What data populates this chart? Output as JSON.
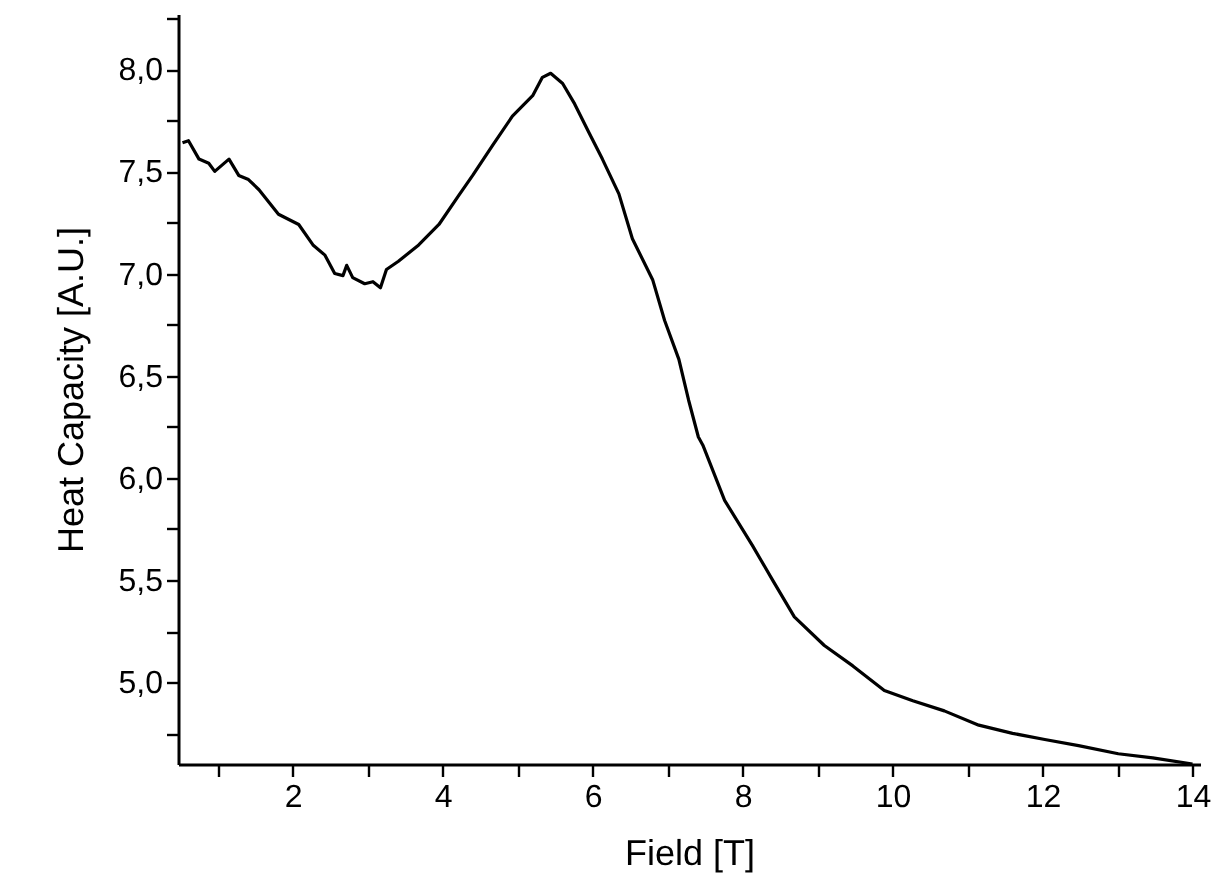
{
  "chart_data": {
    "type": "line",
    "xlabel": "Field [T]",
    "ylabel": "Heat Capacity [A.U.]",
    "xlim": [
      0.47,
      14.1
    ],
    "ylim": [
      4.6,
      8.27
    ],
    "xticks": [
      {
        "value": 1,
        "label": null
      },
      2,
      {
        "value": 3,
        "label": null
      },
      4,
      {
        "value": 5,
        "label": null
      },
      6,
      {
        "value": 7,
        "label": null
      },
      8,
      {
        "value": 9,
        "label": null
      },
      10,
      {
        "value": 11,
        "label": null
      },
      12,
      {
        "value": 13,
        "label": null
      },
      14
    ],
    "yticks": [
      {
        "value": 4.75,
        "label": null
      },
      {
        "value": 5.0,
        "label": "5,0"
      },
      {
        "value": 5.25,
        "label": null
      },
      {
        "value": 5.5,
        "label": "5,5"
      },
      {
        "value": 5.75,
        "label": null
      },
      {
        "value": 6.0,
        "label": "6,0"
      },
      {
        "value": 6.25,
        "label": null
      },
      {
        "value": 6.5,
        "label": "6,5"
      },
      {
        "value": 6.75,
        "label": null
      },
      {
        "value": 7.0,
        "label": "7,0"
      },
      {
        "value": 7.25,
        "label": null
      },
      {
        "value": 7.5,
        "label": "7,5"
      },
      {
        "value": 7.75,
        "label": null
      },
      {
        "value": 8.0,
        "label": "8,0"
      },
      {
        "value": 8.25,
        "label": null
      }
    ],
    "grid": false,
    "marker": "none",
    "line_style": "solid",
    "series": [
      {
        "color": "#000000",
        "x": [
          0.53,
          0.61,
          0.75,
          0.88,
          0.96,
          1.15,
          1.28,
          1.41,
          1.55,
          1.81,
          2.08,
          2.27,
          2.43,
          2.56,
          2.67,
          2.72,
          2.8,
          2.96,
          3.07,
          3.17,
          3.25,
          3.41,
          3.68,
          3.95,
          4.21,
          4.4,
          4.67,
          4.93,
          5.2,
          5.33,
          5.44,
          5.6,
          5.76,
          5.95,
          6.13,
          6.35,
          6.53,
          6.8,
          6.96,
          7.15,
          7.28,
          7.41,
          7.47,
          7.76,
          8.13,
          8.4,
          8.69,
          9.09,
          9.47,
          9.89,
          10.27,
          10.69,
          11.15,
          11.6,
          12.03,
          12.48,
          13.01,
          13.47,
          14.0
        ],
        "values": [
          7.64,
          7.65,
          7.56,
          7.54,
          7.5,
          7.56,
          7.48,
          7.46,
          7.41,
          7.29,
          7.24,
          7.14,
          7.09,
          7.0,
          6.99,
          7.04,
          6.98,
          6.95,
          6.96,
          6.93,
          7.02,
          7.06,
          7.14,
          7.24,
          7.38,
          7.48,
          7.63,
          7.77,
          7.87,
          7.96,
          7.98,
          7.93,
          7.83,
          7.69,
          7.56,
          7.39,
          7.17,
          6.97,
          6.77,
          6.58,
          6.38,
          6.2,
          6.16,
          5.89,
          5.67,
          5.5,
          5.32,
          5.18,
          5.08,
          4.96,
          4.91,
          4.86,
          4.79,
          4.75,
          4.72,
          4.69,
          4.65,
          4.63,
          4.6
        ]
      }
    ]
  }
}
